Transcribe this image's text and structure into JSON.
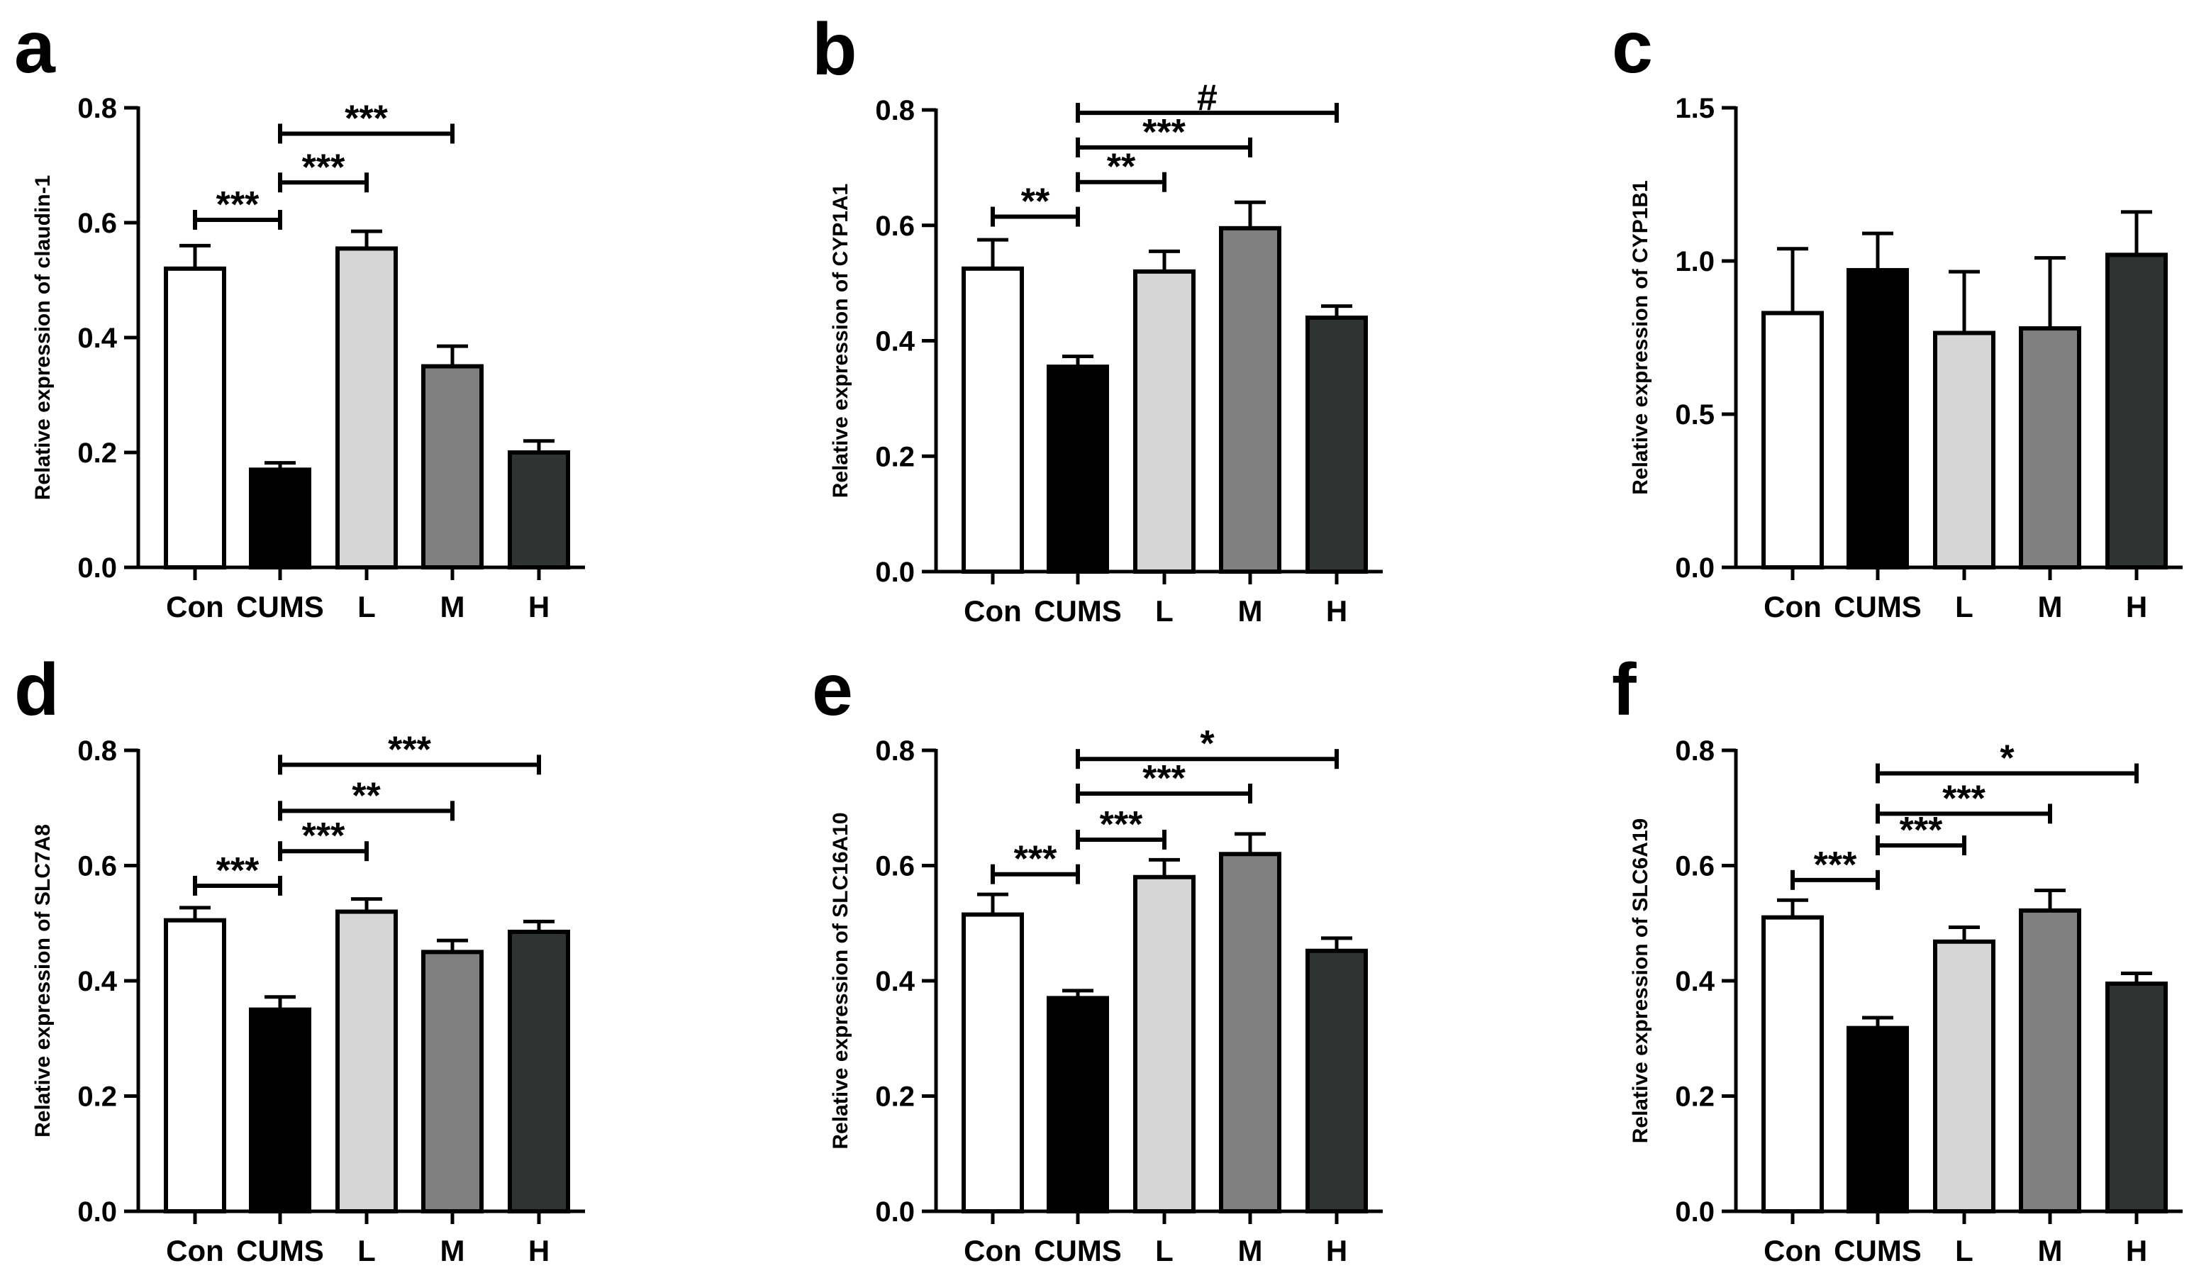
{
  "figure": {
    "colors": {
      "Con": "#ffffff",
      "CUMS": "#000000",
      "L": "#d6d6d6",
      "M": "#808080",
      "H": "#2f3433",
      "stroke": "#000000"
    }
  },
  "chart_data": [
    {
      "panel": "a",
      "type": "bar",
      "categories": [
        "Con",
        "CUMS",
        "L",
        "M",
        "H"
      ],
      "values": [
        0.52,
        0.17,
        0.555,
        0.35,
        0.2
      ],
      "errors": [
        0.04,
        0.012,
        0.03,
        0.035,
        0.02
      ],
      "ylabel": "Relative expression of claudin-1",
      "ylim": [
        0,
        0.8
      ],
      "yticks": [
        "0.0",
        "0.2",
        "0.4",
        "0.6",
        "0.8"
      ],
      "significance": [
        {
          "from": 0,
          "to": 1,
          "y": 0.605,
          "label": "***"
        },
        {
          "from": 1,
          "to": 2,
          "y": 0.67,
          "label": "***"
        },
        {
          "from": 1,
          "to": 3,
          "y": 0.755,
          "label": "***"
        }
      ]
    },
    {
      "panel": "b",
      "type": "bar",
      "categories": [
        "Con",
        "CUMS",
        "L",
        "M",
        "H"
      ],
      "values": [
        0.525,
        0.355,
        0.52,
        0.595,
        0.44
      ],
      "errors": [
        0.05,
        0.018,
        0.035,
        0.045,
        0.02
      ],
      "ylabel": "Relative expression of CYP1A1",
      "ylim": [
        0,
        0.8
      ],
      "yticks": [
        "0.0",
        "0.2",
        "0.4",
        "0.6",
        "0.8"
      ],
      "significance": [
        {
          "from": 0,
          "to": 1,
          "y": 0.615,
          "label": "**"
        },
        {
          "from": 1,
          "to": 2,
          "y": 0.675,
          "label": "**"
        },
        {
          "from": 1,
          "to": 3,
          "y": 0.735,
          "label": "***"
        },
        {
          "from": 1,
          "to": 4,
          "y": 0.795,
          "label": "#"
        }
      ]
    },
    {
      "panel": "c",
      "type": "bar",
      "categories": [
        "Con",
        "CUMS",
        "L",
        "M",
        "H"
      ],
      "values": [
        0.83,
        0.97,
        0.765,
        0.78,
        1.02
      ],
      "errors": [
        0.21,
        0.12,
        0.2,
        0.23,
        0.14
      ],
      "ylabel": "Relative expression of CYP1B1",
      "ylim": [
        0,
        1.5
      ],
      "yticks": [
        "0.0",
        "0.5",
        "1.0",
        "1.5"
      ],
      "significance": []
    },
    {
      "panel": "d",
      "type": "bar",
      "categories": [
        "Con",
        "CUMS",
        "L",
        "M",
        "H"
      ],
      "values": [
        0.505,
        0.35,
        0.52,
        0.45,
        0.485
      ],
      "errors": [
        0.022,
        0.022,
        0.022,
        0.02,
        0.018
      ],
      "ylabel": "Relative expression of SLC7A8",
      "ylim": [
        0,
        0.8
      ],
      "yticks": [
        "0.0",
        "0.2",
        "0.4",
        "0.6",
        "0.8"
      ],
      "significance": [
        {
          "from": 0,
          "to": 1,
          "y": 0.565,
          "label": "***"
        },
        {
          "from": 1,
          "to": 2,
          "y": 0.625,
          "label": "***"
        },
        {
          "from": 1,
          "to": 3,
          "y": 0.695,
          "label": "**"
        },
        {
          "from": 1,
          "to": 4,
          "y": 0.775,
          "label": "***"
        }
      ]
    },
    {
      "panel": "e",
      "type": "bar",
      "categories": [
        "Con",
        "CUMS",
        "L",
        "M",
        "H"
      ],
      "values": [
        0.515,
        0.37,
        0.58,
        0.62,
        0.452
      ],
      "errors": [
        0.035,
        0.013,
        0.03,
        0.035,
        0.022
      ],
      "ylabel": "Relative expression of SLC16A10",
      "ylim": [
        0,
        0.8
      ],
      "yticks": [
        "0.0",
        "0.2",
        "0.4",
        "0.6",
        "0.8"
      ],
      "significance": [
        {
          "from": 0,
          "to": 1,
          "y": 0.585,
          "label": "***"
        },
        {
          "from": 1,
          "to": 2,
          "y": 0.645,
          "label": "***"
        },
        {
          "from": 1,
          "to": 3,
          "y": 0.725,
          "label": "***"
        },
        {
          "from": 1,
          "to": 4,
          "y": 0.785,
          "label": "*"
        }
      ]
    },
    {
      "panel": "f",
      "type": "bar",
      "categories": [
        "Con",
        "CUMS",
        "L",
        "M",
        "H"
      ],
      "values": [
        0.51,
        0.318,
        0.468,
        0.522,
        0.395
      ],
      "errors": [
        0.03,
        0.018,
        0.025,
        0.035,
        0.018
      ],
      "ylabel": "Relative expression of SLC6A19",
      "ylim": [
        0,
        0.8
      ],
      "yticks": [
        "0.0",
        "0.2",
        "0.4",
        "0.6",
        "0.8"
      ],
      "significance": [
        {
          "from": 0,
          "to": 1,
          "y": 0.575,
          "label": "***"
        },
        {
          "from": 1,
          "to": 2,
          "y": 0.635,
          "label": "***"
        },
        {
          "from": 1,
          "to": 3,
          "y": 0.69,
          "label": "***"
        },
        {
          "from": 1,
          "to": 4,
          "y": 0.76,
          "label": "*"
        }
      ]
    }
  ]
}
